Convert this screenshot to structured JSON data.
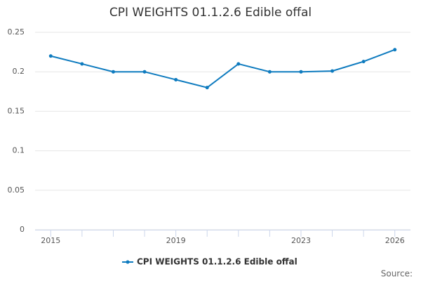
{
  "chart_data": {
    "type": "line",
    "title": "CPI WEIGHTS 01.1.2.6 Edible offal",
    "x": [
      2015,
      2016,
      2017,
      2018,
      2019,
      2020,
      2021,
      2022,
      2023,
      2024,
      2025,
      2026
    ],
    "series": [
      {
        "name": "CPI WEIGHTS 01.1.2.6 Edible offal",
        "color": "#0e7bbf",
        "values": [
          0.22,
          0.21,
          0.2,
          0.2,
          0.19,
          0.18,
          0.21,
          0.2,
          0.2,
          0.201,
          0.213,
          0.228
        ]
      }
    ],
    "xlim": [
      2014.5,
      2026.5
    ],
    "xticks": [
      2015,
      2019,
      2023,
      2026
    ],
    "ylim": [
      0,
      0.25
    ],
    "yticks": [
      0,
      0.05,
      0.1,
      0.15,
      0.2,
      0.25
    ],
    "grid": true,
    "legend": "bottom",
    "source": "Source:"
  }
}
